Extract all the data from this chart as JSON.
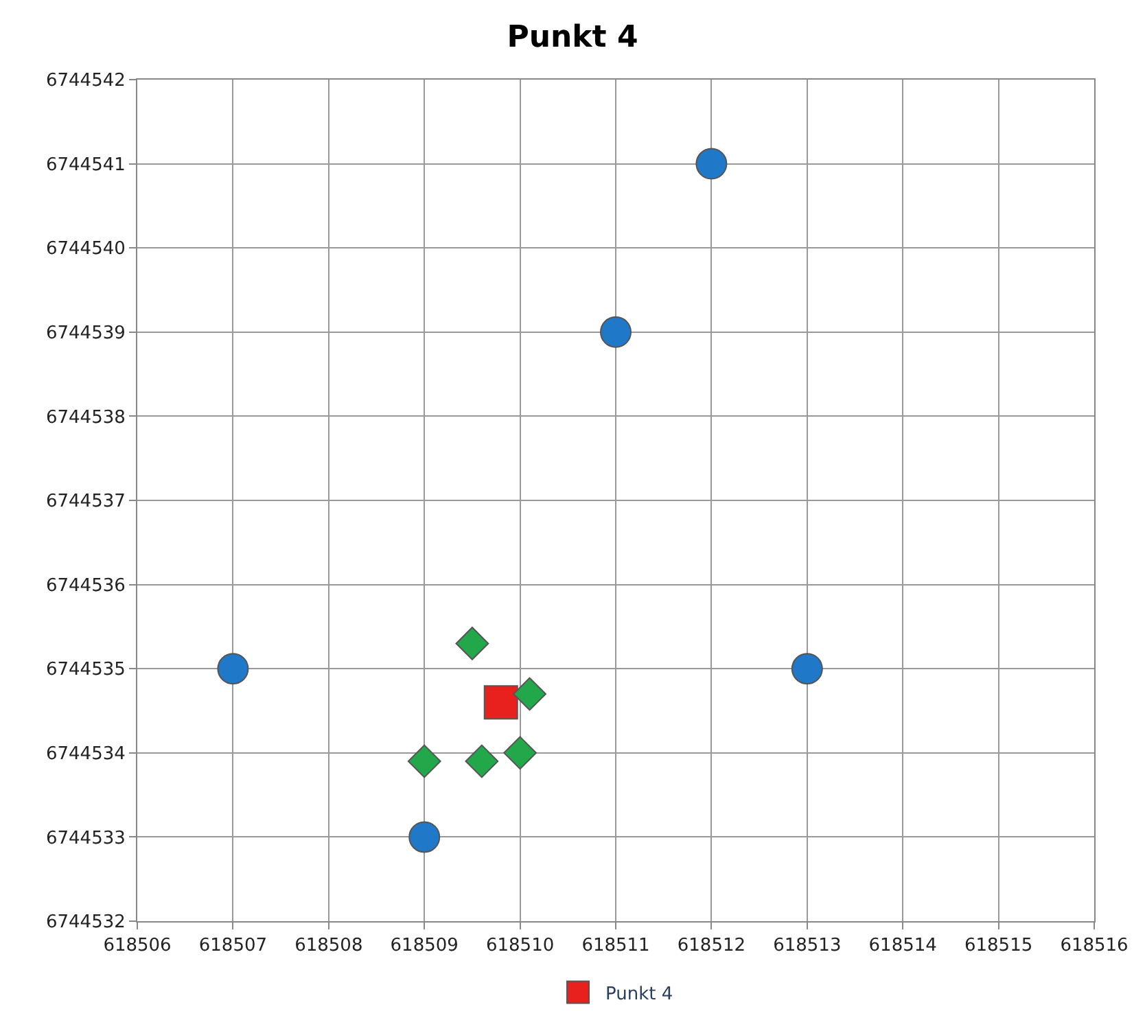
{
  "chart_data": {
    "type": "scatter",
    "title": "Punkt 4",
    "series": [
      {
        "name": "Punkt 4",
        "color": "#e8211e",
        "marker": "square",
        "x": [
          618509.8
        ],
        "values": [
          6744534.6
        ]
      },
      {
        "color": "#22a84a",
        "marker": "diamond",
        "x": [
          618509.5,
          618510.1,
          618509.0,
          618509.6,
          618510.0
        ],
        "values": [
          6744535.3,
          6744534.7,
          6744533.9,
          6744533.9,
          6744534.0
        ]
      },
      {
        "color": "#1f78c8",
        "marker": "circle",
        "x": [
          618507,
          618509,
          618511,
          618512,
          618513
        ],
        "values": [
          6744535,
          6744533,
          6744539,
          6744541,
          6744535
        ]
      }
    ],
    "xlim": [
      618506,
      618516
    ],
    "xticks": [
      618506,
      618507,
      618508,
      618509,
      618510,
      618511,
      618512,
      618513,
      618514,
      618515,
      618516
    ],
    "ylim": [
      6744532,
      6744542
    ],
    "yticks": [
      6744532,
      6744533,
      6744534,
      6744535,
      6744536,
      6744537,
      6744538,
      6744539,
      6744540,
      6744541,
      6744542
    ],
    "grid": true,
    "legend": "bottom"
  }
}
